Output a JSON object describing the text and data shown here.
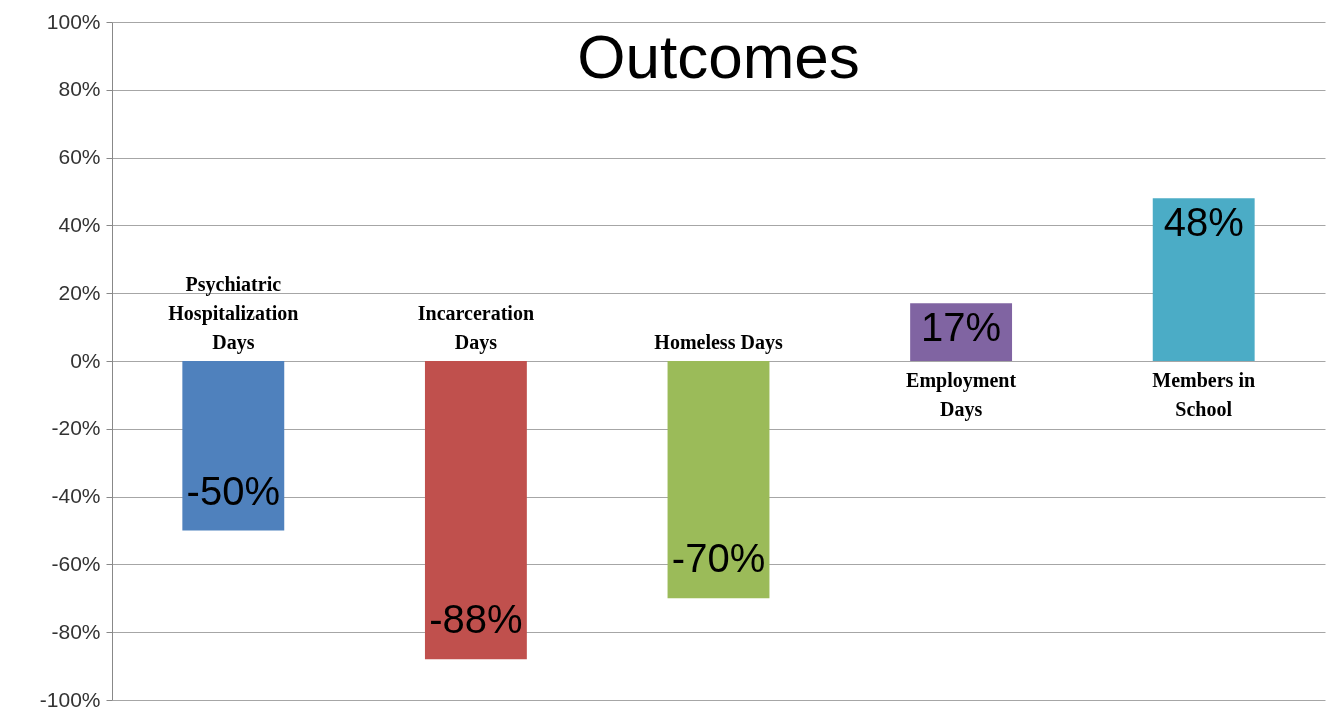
{
  "chart_data": {
    "type": "bar",
    "title": "Outcomes",
    "categories": [
      "Psychiatric Hospitalization Days",
      "Incarceration Days",
      "Homeless Days",
      "Employment Days",
      "Members in School"
    ],
    "values": [
      -50,
      -88,
      -70,
      17,
      48
    ],
    "colors": [
      "#4f81bd",
      "#c0504d",
      "#9bbb59",
      "#8064a2",
      "#4bacc6"
    ],
    "ylim": [
      -100,
      100
    ],
    "yticks": [
      {
        "value": -100,
        "label": "-100%"
      },
      {
        "value": -80,
        "label": "-80%"
      },
      {
        "value": -60,
        "label": "-60%"
      },
      {
        "value": -40,
        "label": "-40%"
      },
      {
        "value": -20,
        "label": "-20%"
      },
      {
        "value": 0,
        "label": "0%"
      },
      {
        "value": 20,
        "label": "20%"
      },
      {
        "value": 40,
        "label": "40%"
      },
      {
        "value": 60,
        "label": "60%"
      },
      {
        "value": 80,
        "label": "80%"
      },
      {
        "value": 100,
        "label": "100%"
      }
    ],
    "value_labels": [
      "-50%",
      "-88%",
      "-70%",
      "17%",
      "48%"
    ],
    "grid": true
  }
}
